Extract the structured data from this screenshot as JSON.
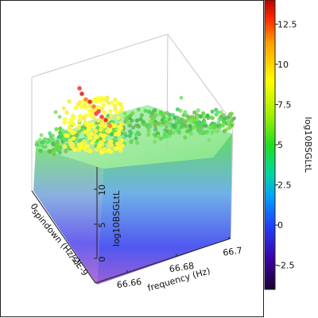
{
  "chart_data": {
    "type": "scatter",
    "variant": "3d-scatter",
    "axes": {
      "x": {
        "label": "frequency (Hz)",
        "ticks": [
          "66.66",
          "66.68",
          "66.7"
        ],
        "range": [
          66.645,
          66.7
        ]
      },
      "y": {
        "label": "spindown (Hz/s)",
        "ticks": [
          "0",
          "-2E-9"
        ]
      },
      "z": {
        "label": "log10BSGLtL",
        "ticks": [
          "0",
          "5",
          "10"
        ],
        "range": [
          -4,
          14
        ]
      }
    },
    "colorbar": {
      "label": "log10BSGLtL",
      "ticks": [
        "-2.5",
        "0",
        "2.5",
        "5",
        "7.5",
        "10",
        "12.5"
      ],
      "range": [
        -4,
        14
      ],
      "colormap": [
        "#1a0030",
        "#3a00a0",
        "#2040ff",
        "#00a0ff",
        "#00d8a0",
        "#20e020",
        "#a0f000",
        "#ffff00",
        "#ffa000",
        "#ff3000",
        "#c00000"
      ]
    },
    "point_groups": [
      {
        "frequency_range": [
          66.645,
          66.7
        ],
        "log10BSGLtL_range": [
          -4,
          6
        ],
        "color": "#50e050"
      },
      {
        "frequency_range": [
          66.648,
          66.66
        ],
        "log10BSGLtL_range": [
          7,
          10
        ],
        "color": "#ffff20"
      },
      {
        "frequency_range": [
          66.65,
          66.658
        ],
        "log10BSGLtL_range": [
          11,
          14
        ],
        "color": "#e02020"
      }
    ],
    "grid": false,
    "legend": "colorbar-right"
  }
}
